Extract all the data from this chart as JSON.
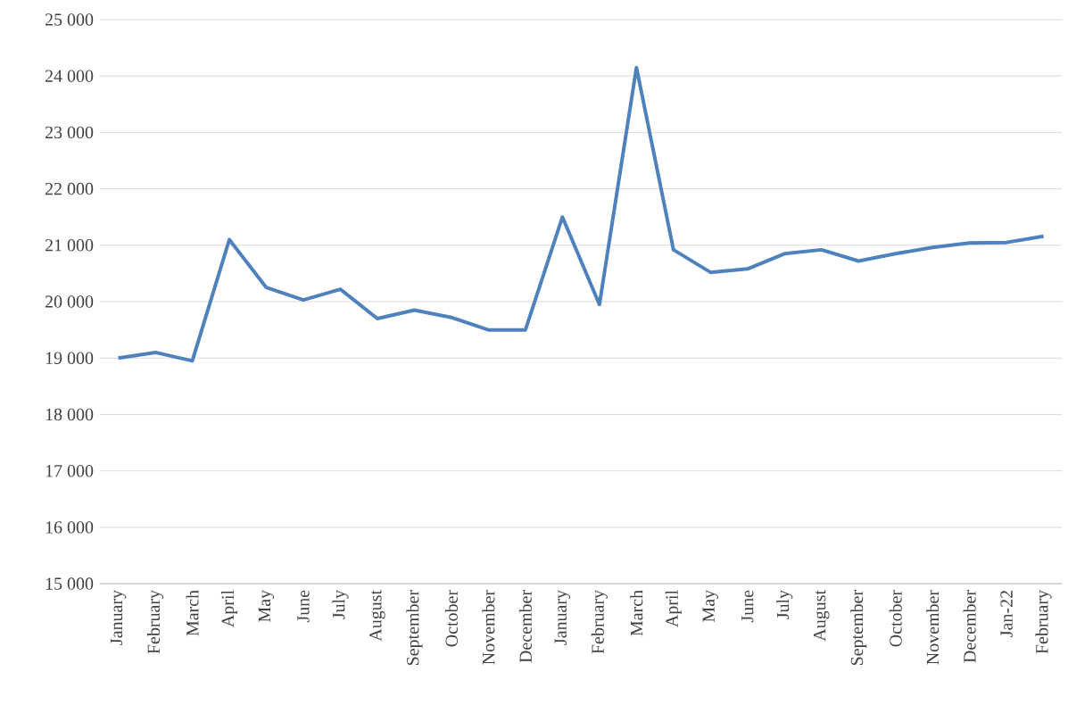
{
  "chart_data": {
    "type": "line",
    "categories": [
      "January",
      "February",
      "March",
      "April",
      "May",
      "June",
      "July",
      "August",
      "September",
      "October",
      "November",
      "December",
      "January",
      "February",
      "March",
      "April",
      "May",
      "June",
      "July",
      "August",
      "September",
      "October",
      "November",
      "December",
      "Jan-22",
      "February"
    ],
    "series": [
      {
        "color": "#4f81bd",
        "values": [
          19000,
          19100,
          18950,
          21100,
          20250,
          20030,
          20220,
          19700,
          19850,
          19720,
          19500,
          19500,
          21500,
          19950,
          24150,
          20920,
          20520,
          20580,
          20850,
          20920,
          20720,
          20850,
          20960,
          21040,
          21050,
          21160
        ]
      }
    ],
    "ylim": [
      15000,
      25000
    ],
    "yticks": [
      {
        "value": 15000,
        "label": "15 000"
      },
      {
        "value": 16000,
        "label": "16 000"
      },
      {
        "value": 17000,
        "label": "17 000"
      },
      {
        "value": 18000,
        "label": "18 000"
      },
      {
        "value": 19000,
        "label": "19 000"
      },
      {
        "value": 20000,
        "label": "20 000"
      },
      {
        "value": 21000,
        "label": "21 000"
      },
      {
        "value": 22000,
        "label": "22 000"
      },
      {
        "value": 23000,
        "label": "23 000"
      },
      {
        "value": 24000,
        "label": "24 000"
      },
      {
        "value": 25000,
        "label": "25 000"
      }
    ],
    "grid": "y",
    "marker": "none",
    "line_style": "solid"
  }
}
